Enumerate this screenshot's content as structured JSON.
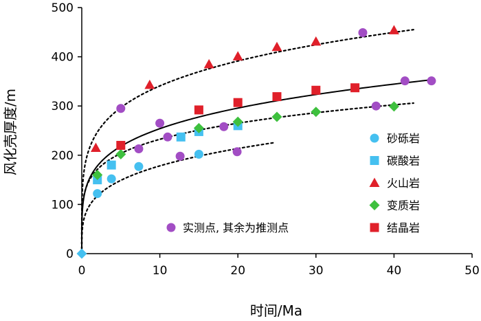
{
  "chart_data": {
    "type": "scatter",
    "title": "",
    "xlabel": "时间/Ma",
    "ylabel": "风化壳厚度/m",
    "xlim": [
      0,
      50
    ],
    "ylim": [
      0,
      500
    ],
    "xticks": [
      0,
      10,
      20,
      30,
      40,
      50
    ],
    "yticks": [
      0,
      100,
      200,
      300,
      400,
      500
    ],
    "xtick_labels": [
      "0",
      "10",
      "20",
      "30",
      "40",
      "50"
    ],
    "ytick_labels": [
      "0",
      "100",
      "200",
      "300",
      "400",
      "500"
    ],
    "legend_position": "right",
    "series": [
      {
        "name": "砂砾岩",
        "marker": "circle",
        "color": "#45c0f0",
        "points": [
          [
            2,
            122
          ],
          [
            3.8,
            152
          ],
          [
            7.3,
            177
          ],
          [
            15,
            202
          ]
        ]
      },
      {
        "name": "碳酸岩",
        "marker": "square",
        "color": "#45c0f0",
        "points": [
          [
            2,
            150
          ],
          [
            3.8,
            180
          ],
          [
            12.7,
            237
          ],
          [
            15,
            248
          ],
          [
            20,
            260
          ]
        ]
      },
      {
        "name": "火山岩",
        "marker": "triangle",
        "color": "#e0202a",
        "points": [
          [
            1.8,
            215
          ],
          [
            8.7,
            343
          ],
          [
            16.3,
            385
          ],
          [
            20,
            401
          ],
          [
            25,
            420
          ],
          [
            30,
            431
          ],
          [
            40,
            454
          ]
        ]
      },
      {
        "name": "变质岩",
        "marker": "diamond",
        "color": "#3ec03e",
        "points": [
          [
            2,
            160
          ],
          [
            5,
            202
          ],
          [
            15,
            255
          ],
          [
            20,
            268
          ],
          [
            25,
            278
          ],
          [
            30,
            288
          ],
          [
            40,
            299
          ]
        ]
      },
      {
        "name": "结晶岩",
        "marker": "square",
        "color": "#e0202a",
        "points": [
          [
            5,
            220
          ],
          [
            15,
            292
          ],
          [
            20,
            307
          ],
          [
            25,
            319
          ],
          [
            30,
            332
          ],
          [
            35,
            337
          ]
        ]
      },
      {
        "name": "实测点",
        "marker": "circle",
        "color": "#a24dc4",
        "points": [
          [
            5,
            295
          ],
          [
            10,
            265
          ],
          [
            7.3,
            213
          ],
          [
            11,
            237
          ],
          [
            12.6,
            198
          ],
          [
            18.2,
            258
          ],
          [
            19.9,
            207
          ],
          [
            36,
            449
          ],
          [
            37.7,
            300
          ],
          [
            41.4,
            351
          ],
          [
            44.8,
            351
          ]
        ]
      }
    ],
    "curves": [
      {
        "name": "火山岩拟合",
        "style": "dashed",
        "a": 215,
        "b": 0.2,
        "xmax": 42.5
      },
      {
        "name": "结晶岩拟合",
        "style": "solid",
        "a": 153,
        "b": 0.22,
        "xmax": 44.8
      },
      {
        "name": "变质岩拟合",
        "style": "dashed",
        "a": 150,
        "b": 0.19,
        "xmax": 42.5
      },
      {
        "name": "砂砾岩拟合",
        "style": "dashed",
        "a": 98,
        "b": 0.26,
        "xmax": 24.5
      }
    ],
    "origin_point": [
      0,
      0
    ],
    "legend_note": "实测点, 其余为推测点"
  },
  "colors": {
    "gravel": "#45c0f0",
    "carbonate": "#45c0f0",
    "volcanic": "#e0202a",
    "metamorphic": "#3ec03e",
    "crystalline": "#e0202a",
    "measured": "#a24dc4"
  }
}
